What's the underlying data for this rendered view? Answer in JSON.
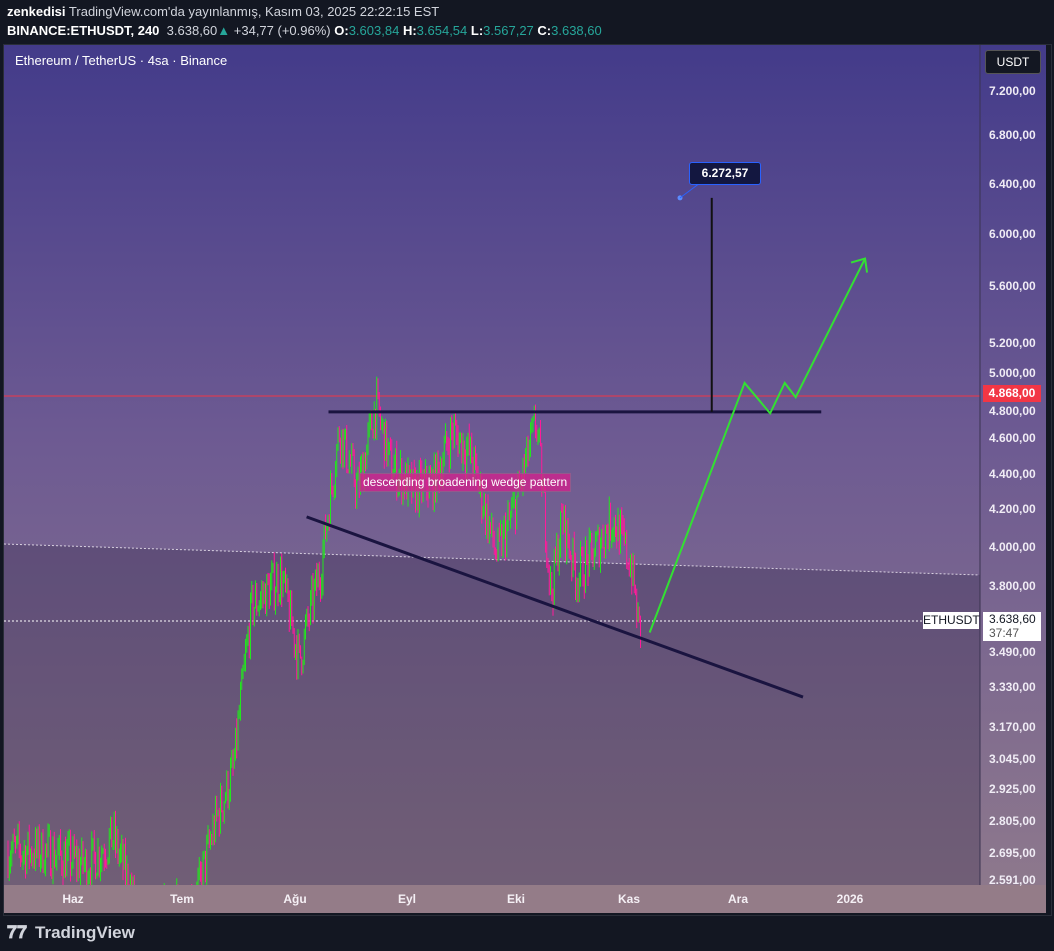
{
  "header": {
    "author": "zenkedisi",
    "published": "TradingView.com'da yayınlanmış, Kasım 03, 2025 22:22:15 EST",
    "symbol": "BINANCE:ETHUSDT, 240",
    "last": "3.638,60",
    "change": "+34,77 (+0.96%)",
    "o_label": "O:",
    "o": "3.603,84",
    "h_label": "H:",
    "h": "3.654,54",
    "l_label": "L:",
    "l": "3.567,27",
    "c_label": "C:",
    "c": "3.638,60"
  },
  "chart": {
    "legend": "Ethereum / TetherUS · 4sa · Binance",
    "currency_button": "USDT",
    "price_ticks": [
      "7.200,00",
      "6.800,00",
      "6.400,00",
      "6.000,00",
      "5.600,00",
      "5.200,00",
      "5.000,00",
      "4.800,00",
      "4.600,00",
      "4.400,00",
      "4.200,00",
      "4.000,00",
      "3.800,00",
      "3.490,00",
      "3.330,00",
      "3.170,00",
      "3.045,00",
      "2.925,00",
      "2.805,00",
      "2.695,00",
      "2.591,00"
    ],
    "time_ticks": [
      "Haz",
      "Tem",
      "Ağu",
      "Eyl",
      "Eki",
      "Kas",
      "Ara",
      "2026"
    ],
    "scale": "log",
    "alert_line_label": "4.868,00",
    "symbol_tag": "ETHUSDT",
    "current_price": "3.638,60",
    "countdown": "37:47",
    "pattern_label": "descending broadening wedge pattern",
    "target_label": "6.272,57",
    "colors": {
      "up": "#22e61e",
      "down": "#ff1a9a",
      "alert_line": "#f23645",
      "drawing": "#1a1440",
      "projection": "#33e033",
      "target_border": "#2962ff"
    }
  },
  "chart_data": {
    "type": "candlestick",
    "price_path": [
      [
        "2025-05-25",
        2700
      ],
      [
        "2025-06-05",
        2650
      ],
      [
        "2025-06-12",
        2750
      ],
      [
        "2025-06-20",
        2450
      ],
      [
        "2025-06-28",
        2500
      ],
      [
        "2025-07-05",
        2550
      ],
      [
        "2025-07-10",
        2800
      ],
      [
        "2025-07-15",
        3000
      ],
      [
        "2025-07-20",
        3700
      ],
      [
        "2025-07-28",
        3850
      ],
      [
        "2025-08-02",
        3450
      ],
      [
        "2025-08-08",
        3900
      ],
      [
        "2025-08-13",
        4650
      ],
      [
        "2025-08-18",
        4300
      ],
      [
        "2025-08-23",
        4800
      ],
      [
        "2025-08-27",
        4450
      ],
      [
        "2025-09-02",
        4300
      ],
      [
        "2025-09-08",
        4350
      ],
      [
        "2025-09-13",
        4650
      ],
      [
        "2025-09-18",
        4500
      ],
      [
        "2025-09-25",
        3950
      ],
      [
        "2025-09-30",
        4200
      ],
      [
        "2025-10-06",
        4700
      ],
      [
        "2025-10-10",
        3750
      ],
      [
        "2025-10-13",
        4150
      ],
      [
        "2025-10-17",
        3850
      ],
      [
        "2025-10-21",
        3950
      ],
      [
        "2025-10-27",
        4150
      ],
      [
        "2025-11-01",
        3900
      ],
      [
        "2025-11-03",
        3600
      ]
    ],
    "drawings": {
      "resistance": {
        "from": [
          "2025-08-10",
          4759
        ],
        "to": [
          "2025-12-23",
          4759
        ]
      },
      "support": {
        "from": [
          "2025-08-04",
          4156
        ],
        "to": [
          "2025-12-18",
          3294
        ]
      },
      "target_line": {
        "date": "2025-11-23",
        "from": 4759,
        "to": 6272.57
      },
      "projection": [
        [
          "2025-11-06",
          3580
        ],
        [
          "2025-12-02",
          4940
        ],
        [
          "2025-12-09",
          4750
        ],
        [
          "2025-12-13",
          4940
        ],
        [
          "2025-12-16",
          4850
        ],
        [
          "2026-01-04",
          5800
        ]
      ]
    }
  },
  "footer": {
    "brand": "TradingView"
  }
}
